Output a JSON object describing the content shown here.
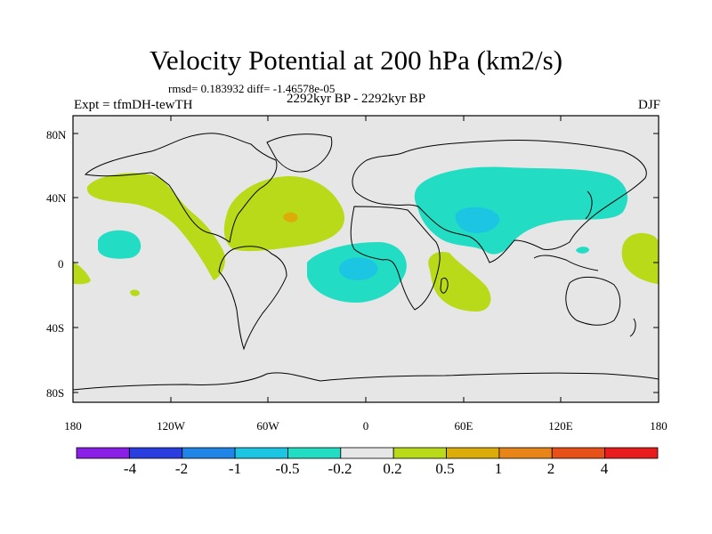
{
  "title": "Velocity Potential at 200 hPa (km2/s)",
  "stats": "rmsd= 0.183932 diff= -1.46578e-05",
  "experiment": "Expt = tfmDH-tewTH",
  "period": "2292kyr BP - 2292kyr BP",
  "season": "DJF",
  "lat_labels": [
    "80N",
    "40N",
    "0",
    "40S",
    "80S"
  ],
  "lon_labels": [
    "180",
    "120W",
    "60W",
    "0",
    "60E",
    "120E",
    "180"
  ],
  "colorbar": {
    "colors": [
      "#8a1fe6",
      "#2a3ee0",
      "#1f86e8",
      "#1cc6e3",
      "#22dcc4",
      "#e6e6e6",
      "#b8da18",
      "#dcad0a",
      "#e88518",
      "#e8501a",
      "#e81c1c"
    ],
    "labels": [
      "-4",
      "-2",
      "-1",
      "-0.5",
      "-0.2",
      "0.2",
      "0.5",
      "1",
      "2",
      "4"
    ]
  },
  "map_fill": {
    "neutral": "#e6e6e6",
    "pos_weak": "#b8da18",
    "pos_med": "#dcad0a",
    "neg_weak": "#22dcc4",
    "neg_med": "#1cc6e3"
  }
}
